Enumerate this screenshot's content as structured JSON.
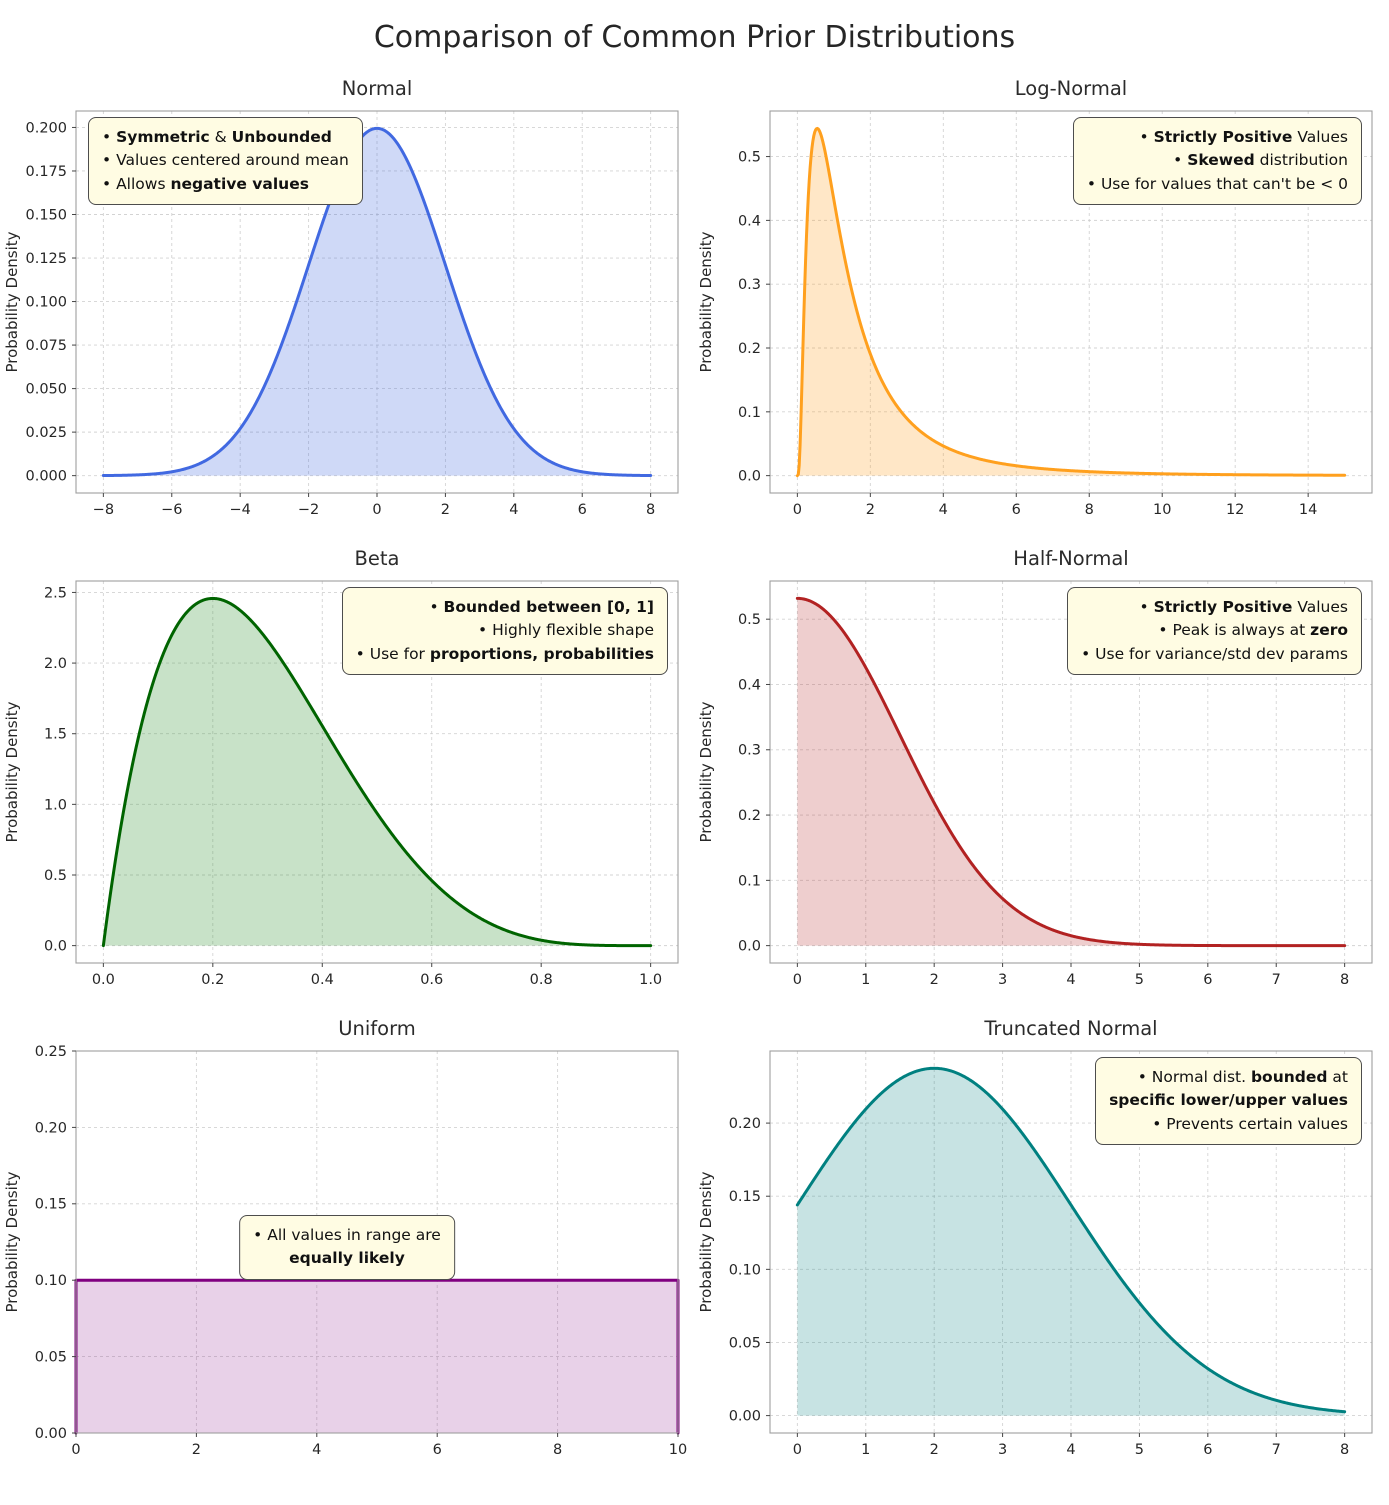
{
  "page": {
    "title": "Comparison of Common Prior Distributions"
  },
  "chart_data": [
    {
      "type": "area",
      "title": "Normal",
      "ylabel": "Probability Density",
      "color": "#4169E1",
      "fill_color": "rgba(65,105,225,0.25)",
      "dist": {
        "kind": "normal",
        "mean": 0,
        "sd": 2
      },
      "x_range": [
        -8,
        8
      ],
      "xlim": [
        -8.8,
        8.8
      ],
      "ylim": [
        -0.00997,
        0.20945
      ],
      "x_ticks": [
        -8,
        -6,
        -4,
        -2,
        0,
        2,
        4,
        6,
        8
      ],
      "y_ticks": [
        0,
        0.025,
        0.05,
        0.075,
        0.1,
        0.125,
        0.15,
        0.175,
        0.2
      ],
      "x_fmt": 0,
      "y_fmt": 3,
      "grid": true,
      "sample_points": [
        [
          -8,
          0.0001
        ],
        [
          -6,
          0.0022
        ],
        [
          -4,
          0.027
        ],
        [
          -2,
          0.121
        ],
        [
          0,
          0.1995
        ],
        [
          2,
          0.121
        ],
        [
          4,
          0.027
        ],
        [
          6,
          0.0022
        ],
        [
          8,
          0.0001
        ]
      ],
      "annotation": {
        "loc": "top-left",
        "align": "left",
        "lines": [
          [
            {
              "t": "• ",
              "b": false
            },
            {
              "t": "Symmetric",
              "b": true
            },
            {
              "t": " & ",
              "b": false
            },
            {
              "t": "Unbounded",
              "b": true
            }
          ],
          [
            {
              "t": "• Values centered around mean",
              "b": false
            }
          ],
          [
            {
              "t": "• Allows ",
              "b": false
            },
            {
              "t": "negative values",
              "b": true
            }
          ]
        ]
      }
    },
    {
      "type": "area",
      "title": "Log-Normal",
      "ylabel": "Probability Density",
      "color": "#FFA01E",
      "fill_color": "rgba(255,160,30,0.25)",
      "dist": {
        "kind": "lognormal",
        "mu": 0.2,
        "sigma": 0.9
      },
      "x_range": [
        0,
        15
      ],
      "xlim": [
        -0.75,
        15.75
      ],
      "ylim": [
        -0.0272,
        0.5714
      ],
      "x_ticks": [
        0,
        2,
        4,
        6,
        8,
        10,
        12,
        14
      ],
      "y_ticks": [
        0,
        0.1,
        0.2,
        0.3,
        0.4,
        0.5
      ],
      "x_fmt": 0,
      "y_fmt": 1,
      "grid": true,
      "sample_points": [
        [
          0,
          0
        ],
        [
          0.25,
          0.376
        ],
        [
          0.54,
          0.544
        ],
        [
          1,
          0.433
        ],
        [
          2,
          0.191
        ],
        [
          3,
          0.09
        ],
        [
          4,
          0.047
        ],
        [
          6,
          0.015
        ],
        [
          8,
          0.006
        ],
        [
          10,
          0.003
        ],
        [
          15,
          0.0006
        ]
      ],
      "annotation": {
        "loc": "top-right",
        "align": "right",
        "lines": [
          [
            {
              "t": "• ",
              "b": false
            },
            {
              "t": "Strictly Positive",
              "b": true
            },
            {
              "t": " Values",
              "b": false
            }
          ],
          [
            {
              "t": "• ",
              "b": false
            },
            {
              "t": "Skewed",
              "b": true
            },
            {
              "t": " distribution",
              "b": false
            }
          ],
          [
            {
              "t": "• Use for values that can't be < 0",
              "b": false
            }
          ]
        ]
      }
    },
    {
      "type": "area",
      "title": "Beta",
      "ylabel": "Probability Density",
      "color": "#006400",
      "fill_color": "rgba(34,139,34,0.25)",
      "dist": {
        "kind": "beta",
        "a": 2,
        "b": 5,
        "norm": 30
      },
      "x_range": [
        0,
        1
      ],
      "xlim": [
        -0.05,
        1.05
      ],
      "ylim": [
        -0.123,
        2.581
      ],
      "x_ticks": [
        0,
        0.2,
        0.4,
        0.6,
        0.8,
        1
      ],
      "y_ticks": [
        0,
        0.5,
        1,
        1.5,
        2,
        2.5
      ],
      "x_fmt": 1,
      "y_fmt": 1,
      "grid": true,
      "sample_points": [
        [
          0,
          0
        ],
        [
          0.1,
          1.97
        ],
        [
          0.2,
          2.46
        ],
        [
          0.3,
          2.16
        ],
        [
          0.4,
          1.56
        ],
        [
          0.5,
          0.94
        ],
        [
          0.6,
          0.46
        ],
        [
          0.7,
          0.17
        ],
        [
          0.8,
          0.04
        ],
        [
          0.9,
          0.003
        ],
        [
          1,
          0
        ]
      ],
      "annotation": {
        "loc": "top-right",
        "align": "right",
        "lines": [
          [
            {
              "t": "• ",
              "b": false
            },
            {
              "t": "Bounded between [0, 1]",
              "b": true
            }
          ],
          [
            {
              "t": "• Highly flexible shape",
              "b": false
            }
          ],
          [
            {
              "t": "• Use for ",
              "b": false
            },
            {
              "t": "proportions, probabilities",
              "b": true
            }
          ]
        ]
      }
    },
    {
      "type": "area",
      "title": "Half-Normal",
      "ylabel": "Probability Density",
      "color": "#B22222",
      "fill_color": "rgba(178,34,34,0.22)",
      "dist": {
        "kind": "halfnormal",
        "sd": 1.5
      },
      "x_range": [
        0,
        8
      ],
      "xlim": [
        -0.4,
        8.4
      ],
      "ylim": [
        -0.0266,
        0.5585
      ],
      "x_ticks": [
        0,
        1,
        2,
        3,
        4,
        5,
        6,
        7,
        8
      ],
      "y_ticks": [
        0,
        0.1,
        0.2,
        0.3,
        0.4,
        0.5
      ],
      "x_fmt": 0,
      "y_fmt": 1,
      "grid": true,
      "sample_points": [
        [
          0,
          0.532
        ],
        [
          0.5,
          0.503
        ],
        [
          1,
          0.426
        ],
        [
          1.5,
          0.323
        ],
        [
          2,
          0.219
        ],
        [
          2.5,
          0.133
        ],
        [
          3,
          0.072
        ],
        [
          4,
          0.015
        ],
        [
          5,
          0.002
        ],
        [
          6,
          0.0002
        ],
        [
          8,
          0
        ]
      ],
      "annotation": {
        "loc": "top-right",
        "align": "right",
        "lines": [
          [
            {
              "t": "• ",
              "b": false
            },
            {
              "t": "Strictly Positive",
              "b": true
            },
            {
              "t": " Values",
              "b": false
            }
          ],
          [
            {
              "t": "• Peak is always at ",
              "b": false
            },
            {
              "t": "zero",
              "b": true
            }
          ],
          [
            {
              "t": "• Use for variance/std dev params",
              "b": false
            }
          ]
        ]
      }
    },
    {
      "type": "area",
      "title": "Uniform",
      "ylabel": "Probability Density",
      "color": "#800080",
      "fill_color": "rgba(128,0,128,0.18)",
      "dist": {
        "kind": "uniform",
        "a": 0,
        "b": 10
      },
      "x_range": [
        0,
        10
      ],
      "xlim": [
        0,
        10
      ],
      "ylim": [
        0,
        0.25
      ],
      "x_ticks": [
        0,
        2,
        4,
        6,
        8,
        10
      ],
      "y_ticks": [
        0,
        0.05,
        0.1,
        0.15,
        0.2,
        0.25
      ],
      "x_fmt": 0,
      "y_fmt": 2,
      "grid": true,
      "sample_points": [
        [
          0,
          0.1
        ],
        [
          10,
          0.1
        ]
      ],
      "annotation": {
        "loc": "center",
        "align": "center",
        "lines": [
          [
            {
              "t": "• All values in range are",
              "b": false
            }
          ],
          [
            {
              "t": "equally likely",
              "b": true
            }
          ]
        ]
      }
    },
    {
      "type": "area",
      "title": "Truncated Normal",
      "ylabel": "Probability Density",
      "color": "#008080",
      "fill_color": "rgba(0,128,128,0.22)",
      "dist": {
        "kind": "truncnorm",
        "mean": 2,
        "sd": 2,
        "low": 0,
        "high": 8,
        "z": 0.84
      },
      "x_range": [
        0,
        8
      ],
      "xlim": [
        -0.4,
        8.4
      ],
      "ylim": [
        -0.0119,
        0.2493
      ],
      "x_ticks": [
        0,
        1,
        2,
        3,
        4,
        5,
        6,
        7,
        8
      ],
      "y_ticks": [
        0,
        0.05,
        0.1,
        0.15,
        0.2
      ],
      "x_fmt": 0,
      "y_fmt": 2,
      "grid": true,
      "sample_points": [
        [
          0,
          0.144
        ],
        [
          1,
          0.21
        ],
        [
          2,
          0.237
        ],
        [
          3,
          0.21
        ],
        [
          4,
          0.144
        ],
        [
          5,
          0.077
        ],
        [
          6,
          0.032
        ],
        [
          7,
          0.01
        ],
        [
          8,
          0.003
        ]
      ],
      "annotation": {
        "loc": "top-right",
        "align": "right",
        "lines": [
          [
            {
              "t": "• Normal dist. ",
              "b": false
            },
            {
              "t": "bounded",
              "b": true
            },
            {
              "t": " at",
              "b": false
            }
          ],
          [
            {
              "t": "specific lower/upper values",
              "b": true
            }
          ],
          [
            {
              "t": "• Prevents certain values",
              "b": false
            }
          ]
        ]
      }
    }
  ]
}
